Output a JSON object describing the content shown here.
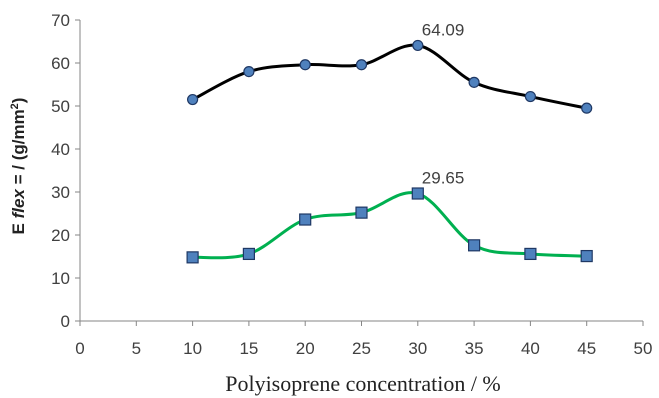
{
  "chart_data": {
    "type": "scatter",
    "title": "",
    "xlabel": "Polyisoprene concentration / %",
    "ylabel": {
      "prefix": "E ",
      "italic": "flex",
      "suffix": " = / (g/mm",
      "sup": "2",
      "close": ")"
    },
    "xlim": [
      0,
      50
    ],
    "ylim": [
      0,
      70
    ],
    "x_ticks": [
      "0",
      "5",
      "10",
      "15",
      "20",
      "25",
      "30",
      "35",
      "40",
      "45",
      "50"
    ],
    "y_ticks": [
      "0",
      "10",
      "20",
      "30",
      "40",
      "50",
      "60",
      "70"
    ],
    "grid": false,
    "smooth_lines": true,
    "series": [
      {
        "x": [
          10,
          15,
          20,
          25,
          30,
          35,
          40,
          45
        ],
        "y": [
          51.5,
          58.0,
          59.6,
          59.6,
          64.09,
          55.5,
          52.2,
          49.5
        ],
        "line_color": "#000000",
        "marker": "circle",
        "marker_color": "#4f81bd",
        "annotation": {
          "x": 30,
          "y": 64.09,
          "text": "64.09"
        }
      },
      {
        "x": [
          10,
          15,
          20,
          25,
          30,
          35,
          40,
          45
        ],
        "y": [
          14.8,
          15.6,
          23.6,
          25.2,
          29.65,
          17.6,
          15.6,
          15.1
        ],
        "line_color": "#00b050",
        "marker": "square",
        "marker_color": "#4f81bd",
        "annotation": {
          "x": 30,
          "y": 29.65,
          "text": "29.65"
        }
      }
    ]
  }
}
